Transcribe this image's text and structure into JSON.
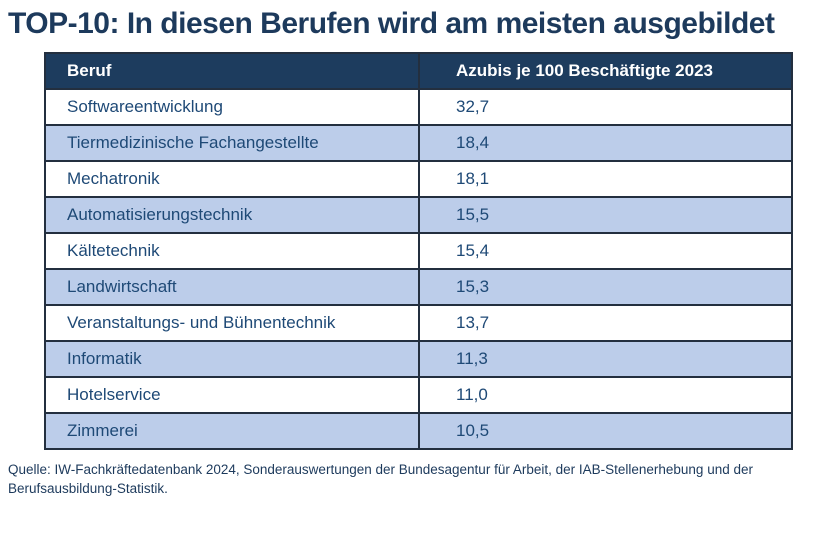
{
  "title": "TOP-10: In diesen Berufen wird am meisten ausgebildet",
  "source": "Quelle: IW-Fachkräftedatenbank 2024, Sonderauswertungen der Bundesagentur für Arbeit, der IAB-Stellenerhebung und der Berufsausbildung-Statistik.",
  "colors": {
    "title_text": "#1d3a5c",
    "header_bg": "#1d3c5e",
    "header_text": "#ffffff",
    "row_alt_bg": "#bccdea",
    "row_bg": "#ffffff",
    "cell_text": "#1e4976",
    "border": "#232f3f"
  },
  "table": {
    "headers": {
      "beruf": "Beruf",
      "value": "Azubis je 100 Beschäftigte 2023"
    },
    "rows": [
      {
        "beruf": "Softwareentwicklung",
        "value": "32,7"
      },
      {
        "beruf": "Tiermedizinische Fachangestellte",
        "value": "18,4"
      },
      {
        "beruf": "Mechatronik",
        "value": "18,1"
      },
      {
        "beruf": "Automatisierungstechnik",
        "value": "15,5"
      },
      {
        "beruf": "Kältetechnik",
        "value": "15,4"
      },
      {
        "beruf": "Landwirtschaft",
        "value": "15,3"
      },
      {
        "beruf": "Veranstaltungs- und Bühnentechnik",
        "value": "13,7"
      },
      {
        "beruf": "Informatik",
        "value": "11,3"
      },
      {
        "beruf": "Hotelservice",
        "value": "11,0"
      },
      {
        "beruf": "Zimmerei",
        "value": "10,5"
      }
    ]
  },
  "chart_data": {
    "type": "table",
    "title": "TOP-10: In diesen Berufen wird am meisten ausgebildet",
    "columns": [
      "Beruf",
      "Azubis je 100 Beschäftigte 2023"
    ],
    "categories": [
      "Softwareentwicklung",
      "Tiermedizinische Fachangestellte",
      "Mechatronik",
      "Automatisierungstechnik",
      "Kältetechnik",
      "Landwirtschaft",
      "Veranstaltungs- und Bühnentechnik",
      "Informatik",
      "Hotelservice",
      "Zimmerei"
    ],
    "values": [
      32.7,
      18.4,
      18.1,
      15.5,
      15.4,
      15.3,
      13.7,
      11.3,
      11.0,
      10.5
    ],
    "value_format": "decimal-comma",
    "source": "Quelle: IW-Fachkräftedatenbank 2024, Sonderauswertungen der Bundesagentur für Arbeit, der IAB-Stellenerhebung und der Berufsausbildung-Statistik."
  }
}
